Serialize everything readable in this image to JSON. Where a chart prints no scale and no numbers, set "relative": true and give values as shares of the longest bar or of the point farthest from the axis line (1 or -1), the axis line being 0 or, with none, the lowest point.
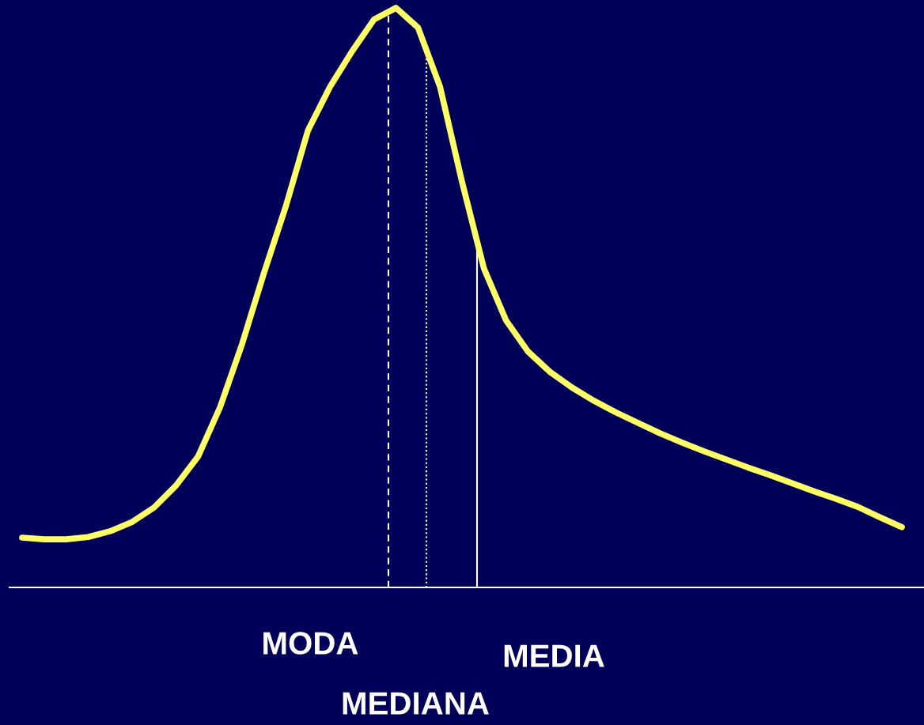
{
  "chart_data": {
    "type": "line",
    "relative": true,
    "categories": [
      null,
      null,
      null,
      null,
      null,
      null,
      null,
      null,
      null,
      null,
      null,
      null,
      null,
      null,
      null,
      null,
      null,
      null,
      null,
      null,
      null,
      null,
      null,
      null,
      null,
      null,
      null,
      null,
      null,
      null,
      null,
      null,
      null,
      null,
      null,
      null,
      null,
      null,
      null,
      null,
      null
    ],
    "series": [
      {
        "color": "#ffff66",
        "values": [
          0.086,
          0.083,
          0.083,
          0.087,
          0.097,
          0.113,
          0.138,
          0.176,
          0.226,
          0.311,
          0.42,
          0.543,
          0.659,
          0.789,
          0.864,
          0.925,
          0.98,
          1,
          0.966,
          0.864,
          0.7,
          0.55,
          0.461,
          0.407,
          0.372,
          0.345,
          0.322,
          0.302,
          0.284,
          0.266,
          0.25,
          0.235,
          0.221,
          0.207,
          0.194,
          0.18,
          0.166,
          0.153,
          0.139,
          0.121,
          0.104
        ]
      }
    ],
    "annotations": [
      "MODA",
      "MEDIANA",
      "MEDIA"
    ],
    "legend": false,
    "marker": "none",
    "line_style": "solid"
  }
}
